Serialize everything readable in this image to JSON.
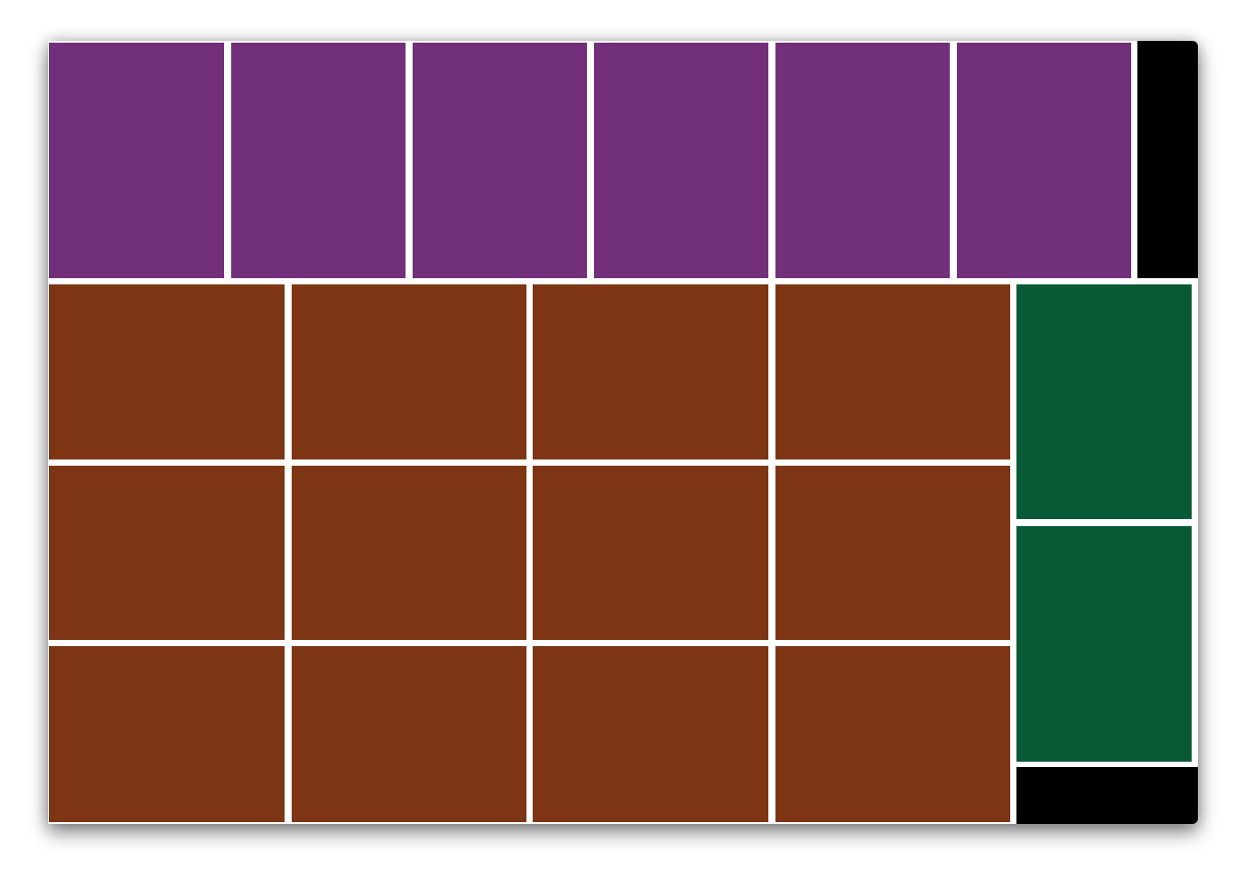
{
  "colors": {
    "purple": "#72307b",
    "brown": "#7d3514",
    "green": "#075a35",
    "black": "#000000",
    "gap": "#ffffff"
  },
  "grid": {
    "top_row": {
      "color": "purple",
      "count": 6
    },
    "main_block": {
      "color": "brown",
      "rows": 3,
      "columns": 4
    },
    "side_column": {
      "color": "green",
      "count": 2
    },
    "filler_blocks": {
      "color": "black",
      "count": 2
    }
  }
}
